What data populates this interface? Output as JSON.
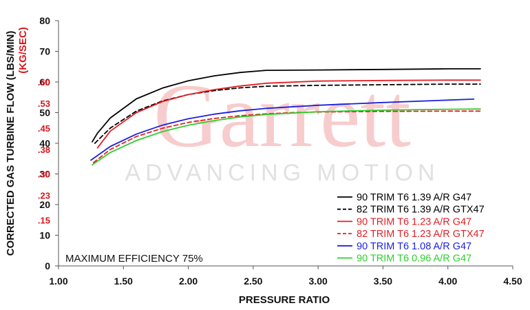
{
  "chart_data": {
    "type": "line",
    "xlabel": "PRESSURE RATIO",
    "ylabel": "CORRECTED GAS TURBINE FLOW (LBS/MIN)",
    "ylabel_secondary": "(KG/SEC)",
    "xlim": [
      1.0,
      4.5
    ],
    "ylim": [
      0,
      80
    ],
    "x_ticks": [
      "1.00",
      "1.50",
      "2.00",
      "2.50",
      "3.00",
      "3.50",
      "4.00",
      "4.50"
    ],
    "y_ticks": [
      {
        "value": 0,
        "label": "0"
      },
      {
        "value": 10,
        "label": "10"
      },
      {
        "value": 20,
        "label": "20"
      },
      {
        "value": 30,
        "label": "30"
      },
      {
        "value": 40,
        "label": "40"
      },
      {
        "value": 50,
        "label": "50"
      },
      {
        "value": 60,
        "label": "60"
      },
      {
        "value": 70,
        "label": "70"
      },
      {
        "value": 80,
        "label": "80"
      }
    ],
    "y2_ticks": [
      {
        "value": 15,
        "label": ".15"
      },
      {
        "value": 23,
        "label": ".23"
      },
      {
        "value": 30,
        "label": ".30"
      },
      {
        "value": 38,
        "label": ".38"
      },
      {
        "value": 45,
        "label": ".45"
      },
      {
        "value": 53,
        "label": ".53"
      },
      {
        "value": 60,
        "label": ".60"
      }
    ],
    "grid": false,
    "legend_position": "bottom-right",
    "annotation": "MAXIMUM EFFICIENCY 75%",
    "watermark": {
      "brand": "Garrett",
      "tagline": "ADVANCING MOTION"
    },
    "series": [
      {
        "name": "90 TRIM T6 1.39 A/R G47",
        "color": "#000000",
        "dash": "solid",
        "text_color": "#000000",
        "x": [
          1.26,
          1.3,
          1.4,
          1.6,
          1.8,
          2.0,
          2.2,
          2.4,
          2.6,
          3.0,
          3.5,
          4.0,
          4.25
        ],
        "y": [
          40.5,
          43.3,
          48.3,
          54.5,
          58.0,
          60.4,
          62.0,
          63.1,
          63.8,
          63.9,
          64.1,
          64.3,
          64.3
        ]
      },
      {
        "name": "82 TRIM T6 1.39 A/R GTX47",
        "color": "#000000",
        "dash": "dashed",
        "text_color": "#000000",
        "x": [
          1.28,
          1.4,
          1.6,
          1.8,
          2.0,
          2.2,
          2.4,
          2.6,
          3.0,
          3.5,
          4.0,
          4.25
        ],
        "y": [
          40.0,
          45.0,
          50.5,
          53.8,
          55.9,
          57.2,
          58.1,
          58.6,
          58.9,
          59.1,
          59.3,
          59.3
        ]
      },
      {
        "name": "90 TRIM T6 1.23 A/R G47",
        "color": "#e41e24",
        "dash": "solid",
        "text_color": "#e41e24",
        "x": [
          1.3,
          1.4,
          1.6,
          1.8,
          2.0,
          2.2,
          2.4,
          2.6,
          3.0,
          3.5,
          4.0,
          4.25
        ],
        "y": [
          38.5,
          44.0,
          50.0,
          53.6,
          55.9,
          57.5,
          58.7,
          59.6,
          60.3,
          60.5,
          60.6,
          60.6
        ]
      },
      {
        "name": "82 TRIM T6 1.23 A/R GTX47",
        "color": "#e41e24",
        "dash": "dashed",
        "text_color": "#e41e24",
        "x": [
          1.27,
          1.4,
          1.6,
          1.8,
          2.0,
          2.2,
          2.4,
          2.6,
          2.8,
          3.0,
          3.5,
          4.0,
          4.25
        ],
        "y": [
          33.7,
          38.0,
          42.2,
          44.9,
          46.8,
          48.1,
          49.0,
          49.6,
          50.0,
          50.2,
          50.4,
          50.5,
          50.5
        ]
      },
      {
        "name": "90 TRIM T6 1.08 A/R G47",
        "color": "#1a1fe0",
        "dash": "solid",
        "text_color": "#1a1fe0",
        "x": [
          1.25,
          1.4,
          1.6,
          1.8,
          2.0,
          2.2,
          2.4,
          2.6,
          3.0,
          3.5,
          4.0,
          4.2
        ],
        "y": [
          34.5,
          39.0,
          43.0,
          45.9,
          48.0,
          49.5,
          50.6,
          51.4,
          52.4,
          53.3,
          54.1,
          54.4
        ]
      },
      {
        "name": "90 TRIM T6 0.96 A/R G47",
        "color": "#2bd12b",
        "dash": "solid",
        "text_color": "#2bd12b",
        "x": [
          1.26,
          1.4,
          1.6,
          1.8,
          2.0,
          2.2,
          2.4,
          2.6,
          3.0,
          3.5,
          4.0,
          4.25
        ],
        "y": [
          33.0,
          37.0,
          40.9,
          43.8,
          45.9,
          47.4,
          48.6,
          49.4,
          50.3,
          50.8,
          51.1,
          51.2
        ]
      }
    ]
  }
}
